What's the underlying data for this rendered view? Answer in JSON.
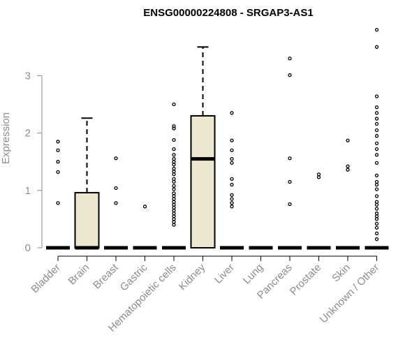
{
  "chart_data": {
    "type": "boxplot",
    "title": "ENSG00000224808 - SRGAP3-AS1",
    "xlabel": "",
    "ylabel": "Expression",
    "ylim": [
      0,
      3.9
    ],
    "y_ticks": [
      0,
      1,
      2,
      3
    ],
    "box_fill": "#ede7d0",
    "categories": [
      "Bladder",
      "Brain",
      "Breast",
      "Gastric",
      "Hematopoietic cells",
      "Kidney",
      "Liver",
      "Lung",
      "Pancreas",
      "Prostate",
      "Skin",
      "Unknown / Other"
    ],
    "boxes": [
      {
        "category": "Bladder",
        "min": 0,
        "q1": 0,
        "median": 0,
        "q3": 0,
        "max": 0,
        "outliers": [
          0.78,
          1.32,
          1.5,
          1.7,
          1.85
        ]
      },
      {
        "category": "Brain",
        "min": 0,
        "q1": 0,
        "median": 0,
        "q3": 0.96,
        "max": 2.26,
        "outliers": []
      },
      {
        "category": "Breast",
        "min": 0,
        "q1": 0,
        "median": 0,
        "q3": 0,
        "max": 0,
        "outliers": [
          0.78,
          1.04,
          1.56
        ]
      },
      {
        "category": "Gastric",
        "min": 0,
        "q1": 0,
        "median": 0,
        "q3": 0,
        "max": 0,
        "outliers": [
          0.72
        ]
      },
      {
        "category": "Hematopoietic cells",
        "min": 0,
        "q1": 0,
        "median": 0,
        "q3": 0,
        "max": 0,
        "outliers": [
          0.4,
          0.45,
          0.5,
          0.55,
          0.6,
          0.65,
          0.7,
          0.75,
          0.8,
          0.85,
          0.9,
          0.95,
          1.02,
          1.08,
          1.15,
          1.2,
          1.28,
          1.33,
          1.38,
          1.45,
          1.5,
          1.55,
          1.62,
          1.72,
          1.88,
          2.08,
          2.12,
          2.5
        ]
      },
      {
        "category": "Kidney",
        "min": 0,
        "q1": 0,
        "median": 1.55,
        "q3": 2.3,
        "max": 3.5,
        "outliers": []
      },
      {
        "category": "Liver",
        "min": 0,
        "q1": 0,
        "median": 0,
        "q3": 0,
        "max": 0,
        "outliers": [
          0.72,
          0.78,
          0.85,
          0.92,
          1.1,
          1.2,
          1.48,
          1.55,
          1.7,
          1.87,
          2.35
        ]
      },
      {
        "category": "Lung",
        "min": 0,
        "q1": 0,
        "median": 0,
        "q3": 0,
        "max": 0,
        "outliers": []
      },
      {
        "category": "Pancreas",
        "min": 0,
        "q1": 0,
        "median": 0,
        "q3": 0,
        "max": 0,
        "outliers": [
          0.76,
          1.15,
          1.56,
          3.01,
          3.3
        ]
      },
      {
        "category": "Prostate",
        "min": 0,
        "q1": 0,
        "median": 0,
        "q3": 0,
        "max": 0,
        "outliers": [
          1.23,
          1.28
        ]
      },
      {
        "category": "Skin",
        "min": 0,
        "q1": 0,
        "median": 0,
        "q3": 0,
        "max": 0,
        "outliers": [
          1.36,
          1.42,
          1.87
        ]
      },
      {
        "category": "Unknown / Other",
        "min": 0,
        "q1": 0,
        "median": 0,
        "q3": 0,
        "max": 0,
        "outliers": [
          0.15,
          0.25,
          0.35,
          0.42,
          0.5,
          0.55,
          0.6,
          0.68,
          0.75,
          0.8,
          0.9,
          1.02,
          1.1,
          1.15,
          1.26,
          1.48,
          1.62,
          1.72,
          1.82,
          1.95,
          2.05,
          2.16,
          2.25,
          2.35,
          2.45,
          2.64,
          3.5,
          3.8
        ]
      }
    ]
  }
}
